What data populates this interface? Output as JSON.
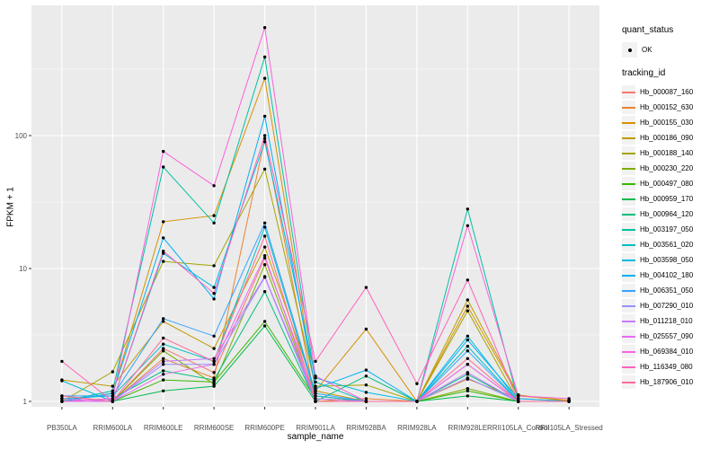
{
  "figure": {
    "background": "#FFFFFF",
    "panel_background": "#EBEBEB",
    "grid_color": "#FFFFFF",
    "tick_color": "#333333",
    "tick_label_color": "#4D4D4D",
    "axis_title_color": "#000000",
    "point_color": "#000000",
    "legend_key_background": "#F2F2F2"
  },
  "chart_data": {
    "type": "line",
    "title": "",
    "xlabel": "sample_name",
    "ylabel": "FPKM + 1",
    "yscale": "log10",
    "grid": true,
    "legend_position": "right",
    "point_shape": "small-black-circle",
    "yticks": [
      1,
      10,
      100
    ],
    "ytick_labels": [
      "1",
      "10",
      "100"
    ],
    "minor_gridlines": [
      3.162,
      31.62,
      316.2
    ],
    "ylim": [
      0.93,
      950
    ],
    "categories": [
      "PB350LA",
      "RRIM600LA",
      "RRIM600LE",
      "RRIM600SE",
      "RRIM600PE",
      "RRIM901LA",
      "RRIM928BA",
      "RRIM928LA",
      "RRIM928LE",
      "RRII105LA_Control",
      "RRII105LA_Stressed"
    ],
    "legends": {
      "quant_status": {
        "title": "quant_status",
        "items": [
          {
            "label": "OK",
            "symbol": "black-point"
          }
        ]
      },
      "tracking_id": {
        "title": "tracking_id"
      }
    },
    "series": [
      {
        "name": "Hb_000087_160",
        "color": "#F8766D",
        "values": [
          1.05,
          1.0,
          2.5,
          1.65,
          12,
          1.1,
          1.0,
          1.0,
          1.9,
          1.0,
          1.0
        ]
      },
      {
        "name": "Hb_000152_630",
        "color": "#EA8331",
        "values": [
          1.1,
          1.0,
          2.1,
          1.5,
          95,
          1.0,
          1.05,
          1.0,
          1.47,
          1.05,
          1.0
        ]
      },
      {
        "name": "Hb_000155_030",
        "color": "#D89000",
        "values": [
          1.0,
          1.15,
          22.5,
          25,
          270,
          1.2,
          3.5,
          1.0,
          5.2,
          1.1,
          1.02
        ]
      },
      {
        "name": "Hb_000186_090",
        "color": "#C09B00",
        "values": [
          1.45,
          1.3,
          4.0,
          2.5,
          14.5,
          1.2,
          1.0,
          1.0,
          5.8,
          1.12,
          1.0
        ]
      },
      {
        "name": "Hb_000188_140",
        "color": "#A3A500",
        "values": [
          1.0,
          1.67,
          11.3,
          10.5,
          56,
          1.3,
          1.33,
          1.0,
          4.8,
          1.0,
          1.0
        ]
      },
      {
        "name": "Hb_000230_220",
        "color": "#7CAE00",
        "values": [
          1.0,
          1.0,
          2.4,
          1.35,
          10.7,
          1.0,
          1.0,
          1.0,
          1.25,
          1.0,
          1.0
        ]
      },
      {
        "name": "Hb_000497_080",
        "color": "#39B600",
        "values": [
          1.0,
          1.0,
          1.45,
          1.4,
          4.0,
          1.05,
          1.0,
          1.0,
          1.2,
          1.0,
          1.0
        ]
      },
      {
        "name": "Hb_000959_170",
        "color": "#00BB4E",
        "values": [
          1.0,
          1.0,
          1.2,
          1.3,
          3.7,
          1.0,
          1.0,
          1.0,
          1.1,
          1.0,
          1.0
        ]
      },
      {
        "name": "Hb_000964_120",
        "color": "#00BF7D",
        "values": [
          1.0,
          1.05,
          1.7,
          1.45,
          6.7,
          1.0,
          1.55,
          1.0,
          1.6,
          1.0,
          1.0
        ]
      },
      {
        "name": "Hb_003197_050",
        "color": "#00C1A3",
        "values": [
          1.0,
          1.2,
          58,
          22,
          390,
          1.4,
          1.0,
          1.0,
          28,
          1.0,
          1.0
        ]
      },
      {
        "name": "Hb_003561_020",
        "color": "#00BFC4",
        "values": [
          1.05,
          1.1,
          2.7,
          2.0,
          20.5,
          1.1,
          1.0,
          1.0,
          2.6,
          1.0,
          1.0
        ]
      },
      {
        "name": "Hb_003598_050",
        "color": "#00BAE0",
        "values": [
          1.43,
          1.0,
          13,
          7.2,
          90,
          1.5,
          1.17,
          1.0,
          3.1,
          1.0,
          1.0
        ]
      },
      {
        "name": "Hb_004102_180",
        "color": "#00B0F6",
        "values": [
          1.0,
          1.15,
          17,
          5.9,
          140,
          1.25,
          1.72,
          1.0,
          2.9,
          1.05,
          1.0
        ]
      },
      {
        "name": "Hb_006351_050",
        "color": "#35A2FF",
        "values": [
          1.1,
          1.1,
          4.2,
          3.1,
          22,
          1.15,
          1.0,
          1.0,
          2.4,
          1.0,
          1.0
        ]
      },
      {
        "name": "Hb_007290_010",
        "color": "#9590FF",
        "values": [
          1.0,
          1.0,
          1.9,
          1.9,
          8.6,
          1.0,
          1.0,
          1.0,
          1.5,
          1.0,
          1.0
        ]
      },
      {
        "name": "Hb_011218_010",
        "color": "#C77CFF",
        "values": [
          1.05,
          1.0,
          2.0,
          2.1,
          8.7,
          1.05,
          1.0,
          1.0,
          1.65,
          1.0,
          1.0
        ]
      },
      {
        "name": "Hb_025557_090",
        "color": "#E76BF3",
        "values": [
          1.0,
          1.0,
          1.6,
          1.9,
          12.5,
          1.0,
          1.0,
          1.0,
          1.9,
          1.0,
          1.0
        ]
      },
      {
        "name": "Hb_069384_010",
        "color": "#FA62DB",
        "values": [
          1.0,
          1.05,
          76,
          42,
          650,
          1.55,
          1.0,
          1.0,
          21,
          1.1,
          1.05
        ]
      },
      {
        "name": "Hb_116349_080",
        "color": "#FF62BC",
        "values": [
          2.0,
          1.0,
          13.5,
          6.5,
          100,
          2.0,
          7.2,
          1.36,
          8.2,
          1.0,
          1.0
        ]
      },
      {
        "name": "Hb_187906_010",
        "color": "#FF6A98",
        "values": [
          1.1,
          1.0,
          3.0,
          2.0,
          17.5,
          1.0,
          1.0,
          1.0,
          2.1,
          1.0,
          1.0
        ]
      }
    ]
  }
}
